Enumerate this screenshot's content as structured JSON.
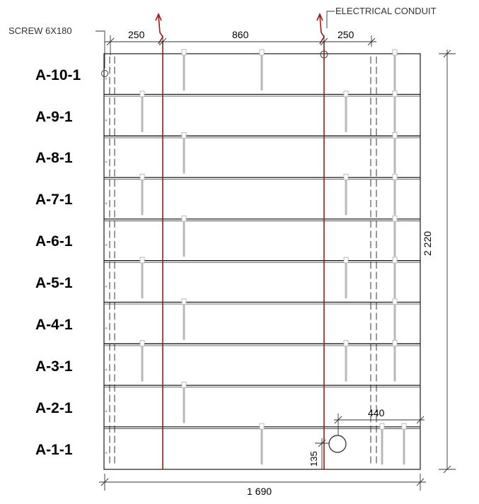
{
  "annotations": {
    "screw": "SCREW 6X180",
    "conduit": "ELECTRICAL CONDUIT"
  },
  "dimensions": {
    "top_left": "250",
    "top_mid": "860",
    "top_right": "250",
    "overall_height": "2 220",
    "overall_width": "1 690",
    "hole_offset_x": "440",
    "hole_offset_y": "135"
  },
  "panels": [
    {
      "label": "A-10-1"
    },
    {
      "label": "A-9-1"
    },
    {
      "label": "A-8-1"
    },
    {
      "label": "A-7-1"
    },
    {
      "label": "A-6-1"
    },
    {
      "label": "A-5-1"
    },
    {
      "label": "A-4-1"
    },
    {
      "label": "A-3-1"
    },
    {
      "label": "A-2-1"
    },
    {
      "label": "A-1-1"
    }
  ],
  "colors": {
    "conduit": "#a01818",
    "line": "#1a1a1a",
    "screw": "#b8b8b8"
  }
}
